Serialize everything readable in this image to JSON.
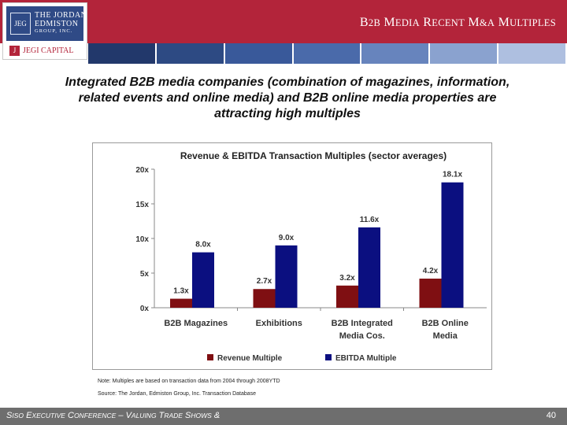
{
  "header": {
    "title": "B2B Media Recent M&A Multiples",
    "logo": {
      "seal": "JEG",
      "name_lines": [
        "THE JORDAN",
        "EDMISTON"
      ],
      "sub": "GROUP, INC.",
      "capital": "JEGI CAPITAL"
    },
    "stripe_colors": [
      "#22386b",
      "#2d4a83",
      "#39599a",
      "#4a6aaa",
      "#6784bd",
      "#8aa2cf",
      "#aebfe0"
    ]
  },
  "subtitle": "Integrated B2B media companies (combination of magazines, information, related events and online media) and B2B online media properties are attracting high multiples",
  "chart_data": {
    "type": "bar",
    "title": "Revenue & EBITDA Transaction Multiples (sector averages)",
    "categories": [
      "B2B Magazines",
      "Exhibitions",
      "B2B Integrated Media Cos.",
      "B2B Online Media"
    ],
    "category_lines": [
      [
        "B2B Magazines"
      ],
      [
        "Exhibitions"
      ],
      [
        "B2B Integrated",
        "Media Cos."
      ],
      [
        "B2B Online",
        "Media"
      ]
    ],
    "series": [
      {
        "name": "Revenue Multiple",
        "values": [
          1.3,
          2.7,
          3.2,
          4.2
        ],
        "labels": [
          "1.3x",
          "2.7x",
          "3.2x",
          "4.2x"
        ],
        "color": "#7f0f12"
      },
      {
        "name": "EBITDA Multiple",
        "values": [
          8.0,
          9.0,
          11.6,
          18.1
        ],
        "labels": [
          "8.0x",
          "9.0x",
          "11.6x",
          "18.1x"
        ],
        "color": "#0b0f80"
      }
    ],
    "yticks": [
      0,
      5,
      10,
      15,
      20
    ],
    "ytick_labels": [
      "0x",
      "5x",
      "10x",
      "15x",
      "20x"
    ],
    "ylim": [
      0,
      20
    ],
    "grid": false,
    "legend": "bottom"
  },
  "notes": {
    "note": "Note: Multiples are based on transaction data from 2004 through 2008YTD",
    "source": "Source: The Jordan, Edmiston Group, Inc. Transaction Database"
  },
  "footer": {
    "text": "SISO Executive Conference – Valuing Trade Shows &",
    "page": "40",
    "color": "#6e6e6e"
  }
}
